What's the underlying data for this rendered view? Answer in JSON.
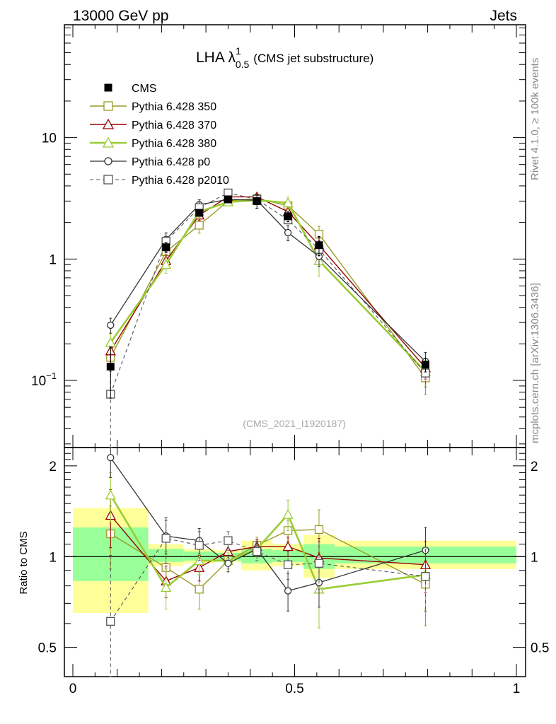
{
  "header": {
    "left": "13000 GeV pp",
    "right": "Jets"
  },
  "side_labels": {
    "rivet": "Rivet 4.1.0, ≥ 100k events",
    "mcplots": "mcplots.cern.ch [arXiv:1306.3436]"
  },
  "chart_data": {
    "type": "line",
    "title": {
      "main": "LHA λ",
      "sup": "1",
      "sub": "0.5",
      "note": "(CMS jet substructure)"
    },
    "watermark": "(CMS_2021_I1920187)",
    "xlabel": "",
    "ylabel_ratio": "Ratio to CMS",
    "xlim": [
      0,
      1
    ],
    "ylim_main": [
      0.028,
      85
    ],
    "ylim_ratio": [
      0.4,
      2.3
    ],
    "y_scale": "log",
    "main_yticks": [
      {
        "v": 0.1,
        "base": "10",
        "exp": "−1"
      },
      {
        "v": 1,
        "label": "1"
      },
      {
        "v": 10,
        "label": "10"
      }
    ],
    "ratio_yticks": [
      {
        "v": 0.5,
        "label": "0.5"
      },
      {
        "v": 1,
        "label": "1"
      },
      {
        "v": 2,
        "label": "2"
      }
    ],
    "xticks": [
      {
        "v": 0,
        "label": "0"
      },
      {
        "v": 0.5,
        "label": "0.5"
      },
      {
        "v": 1,
        "label": "1"
      }
    ],
    "x": [
      0.085,
      0.21,
      0.285,
      0.35,
      0.415,
      0.485,
      0.555,
      0.795
    ],
    "bins": [
      [
        0,
        0.17
      ],
      [
        0.17,
        0.25
      ],
      [
        0.25,
        0.32
      ],
      [
        0.32,
        0.38
      ],
      [
        0.38,
        0.45
      ],
      [
        0.45,
        0.52
      ],
      [
        0.52,
        0.59
      ],
      [
        0.59,
        1.0
      ]
    ],
    "data": {
      "name": "CMS",
      "values": [
        0.13,
        1.25,
        2.4,
        3.1,
        3.0,
        2.25,
        1.3,
        0.135
      ]
    },
    "band_outer": [
      [
        0.65,
        1.45
      ],
      [
        0.93,
        1.1
      ],
      [
        0.95,
        1.06
      ],
      [
        0.96,
        1.05
      ],
      [
        0.9,
        1.13
      ],
      [
        0.93,
        1.1
      ],
      [
        0.85,
        1.18
      ],
      [
        0.91,
        1.13
      ]
    ],
    "band_inner": [
      [
        0.83,
        1.25
      ],
      [
        0.96,
        1.06
      ],
      [
        0.97,
        1.04
      ],
      [
        0.97,
        1.03
      ],
      [
        0.95,
        1.06
      ],
      [
        0.96,
        1.05
      ],
      [
        0.91,
        1.1
      ],
      [
        0.95,
        1.08
      ]
    ],
    "legend_position": "top-left",
    "series": [
      {
        "name": "Pythia 6.428 350",
        "color": "#9a9a26",
        "marker": "square-open",
        "dash": "",
        "width": 1.4,
        "values": [
          0.155,
          1.15,
          1.9,
          3.0,
          3.15,
          2.75,
          1.6,
          0.105
        ],
        "ratio": [
          1.19,
          0.92,
          0.78,
          0.97,
          1.09,
          1.22,
          1.23,
          0.81
        ],
        "rerr": [
          0.28,
          0.12,
          0.11,
          0.06,
          0.07,
          0.1,
          0.2,
          0.22
        ]
      },
      {
        "name": "Pythia 6.428 370",
        "color": "#990000",
        "marker": "triangle-open",
        "dash": "",
        "width": 1.4,
        "values": [
          0.175,
          0.97,
          2.3,
          3.25,
          3.25,
          2.45,
          1.3,
          0.127
        ],
        "ratio": [
          1.37,
          0.83,
          0.92,
          1.04,
          1.08,
          1.08,
          0.99,
          0.94
        ],
        "rerr": [
          0.3,
          0.1,
          0.09,
          0.06,
          0.06,
          0.08,
          0.16,
          0.18
        ]
      },
      {
        "name": "Pythia 6.428 380",
        "color": "#99cc33",
        "marker": "triangle-open",
        "dash": "",
        "width": 2.6,
        "values": [
          0.205,
          0.9,
          2.45,
          2.95,
          3.05,
          2.9,
          0.97,
          0.118
        ],
        "ratio": [
          1.6,
          0.79,
          0.97,
          0.97,
          1.06,
          1.38,
          0.78,
          0.87
        ],
        "rerr": [
          0.3,
          0.12,
          0.1,
          0.06,
          0.06,
          0.16,
          0.2,
          0.2
        ]
      },
      {
        "name": "Pythia 6.428 p0",
        "color": "#333333",
        "marker": "circle-open",
        "dash": "",
        "width": 1.3,
        "values": [
          0.285,
          1.45,
          2.8,
          3.1,
          3.05,
          1.65,
          1.05,
          0.143
        ],
        "ratio": [
          2.13,
          1.17,
          1.13,
          0.95,
          1.06,
          0.77,
          0.82,
          1.05
        ],
        "rerr": [
          0.3,
          0.15,
          0.11,
          0.06,
          0.06,
          0.11,
          0.14,
          0.2
        ]
      },
      {
        "name": "Pythia 6.428 p2010",
        "color": "#555555",
        "marker": "square-open",
        "dash": "5,4",
        "width": 1.1,
        "values": [
          0.077,
          1.4,
          2.65,
          3.5,
          3.1,
          2.1,
          1.2,
          0.115
        ],
        "ratio": [
          0.61,
          1.15,
          1.09,
          1.13,
          1.04,
          0.94,
          0.95,
          0.86
        ],
        "rerr": [
          0.4,
          0.2,
          0.12,
          0.08,
          0.07,
          0.1,
          0.17,
          0.2
        ]
      }
    ]
  }
}
